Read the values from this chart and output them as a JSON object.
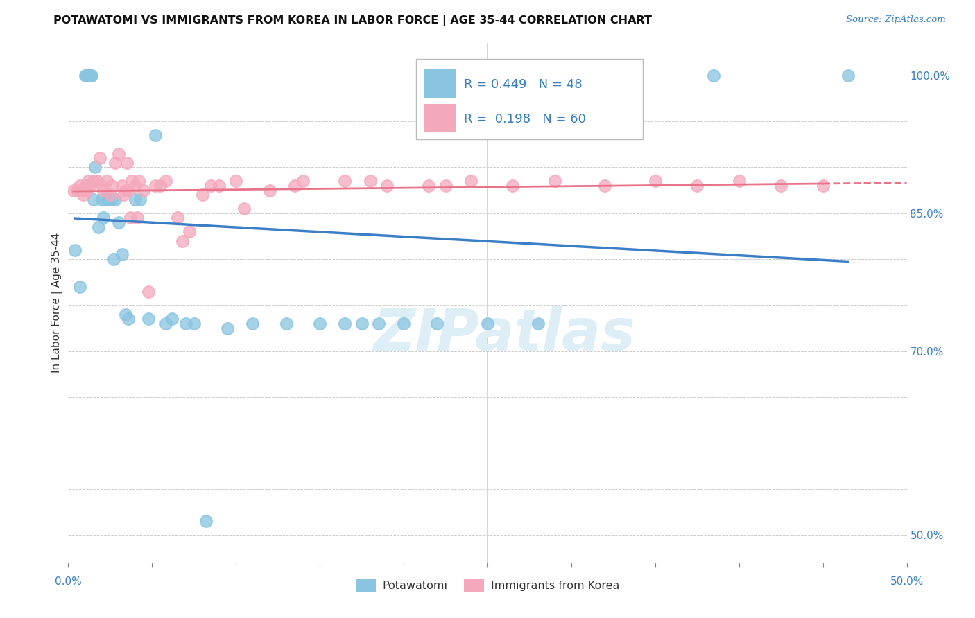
{
  "title": "POTAWATOMI VS IMMIGRANTS FROM KOREA IN LABOR FORCE | AGE 35-44 CORRELATION CHART",
  "source": "Source: ZipAtlas.com",
  "ylabel": "In Labor Force | Age 35-44",
  "xlim": [
    0.0,
    50.0
  ],
  "ylim": [
    47.0,
    103.5
  ],
  "R_blue": 0.449,
  "N_blue": 48,
  "R_pink": 0.198,
  "N_pink": 60,
  "blue_scatter_color": "#89c4e1",
  "pink_scatter_color": "#f4a8bc",
  "trendline_blue_color": "#3a7ec6",
  "trendline_pink_color": "#e8748a",
  "watermark_color": "#ddeef7",
  "right_tick_color": "#3a7ec6",
  "ytick_vals": [
    50,
    55,
    60,
    65,
    70,
    75,
    80,
    85,
    90,
    95,
    100
  ],
  "ytick_labels_right": [
    "50.0%",
    "",
    "",
    "",
    "70.0%",
    "",
    "",
    "85.0%",
    "",
    "",
    "100.0%"
  ],
  "potawatomi_x": [
    0.4,
    0.7,
    1.0,
    1.05,
    1.1,
    1.15,
    1.2,
    1.25,
    1.3,
    1.35,
    1.4,
    1.5,
    1.6,
    1.8,
    2.0,
    2.1,
    2.2,
    2.4,
    2.6,
    2.7,
    2.8,
    3.0,
    3.2,
    3.4,
    3.6,
    4.0,
    4.3,
    4.8,
    5.2,
    5.8,
    6.2,
    7.0,
    7.5,
    8.2,
    9.5,
    11.0,
    13.0,
    15.0,
    16.5,
    17.5,
    18.5,
    20.0,
    22.0,
    25.0,
    28.0,
    32.0,
    38.5,
    46.5
  ],
  "potawatomi_y": [
    81.0,
    77.0,
    100.0,
    100.0,
    100.0,
    100.0,
    100.0,
    100.0,
    100.0,
    100.0,
    100.0,
    86.5,
    90.0,
    83.5,
    86.5,
    84.5,
    86.5,
    86.5,
    86.5,
    80.0,
    86.5,
    84.0,
    80.5,
    74.0,
    73.5,
    86.5,
    86.5,
    73.5,
    93.5,
    73.0,
    73.5,
    73.0,
    73.0,
    51.5,
    72.5,
    73.0,
    73.0,
    73.0,
    73.0,
    73.0,
    73.0,
    73.0,
    73.0,
    73.0,
    73.0,
    100.0,
    100.0,
    100.0
  ],
  "korea_x": [
    0.3,
    0.5,
    0.7,
    0.8,
    0.9,
    1.0,
    1.05,
    1.1,
    1.2,
    1.3,
    1.5,
    1.7,
    1.9,
    2.0,
    2.1,
    2.3,
    2.5,
    2.6,
    2.8,
    3.0,
    3.2,
    3.4,
    3.5,
    3.6,
    3.8,
    4.0,
    4.2,
    4.5,
    4.8,
    5.2,
    5.8,
    6.5,
    7.2,
    8.0,
    9.0,
    10.5,
    12.0,
    14.0,
    16.5,
    19.0,
    21.5,
    24.0,
    26.5,
    29.0,
    32.0,
    35.0,
    37.5,
    40.0,
    42.5,
    45.0,
    3.3,
    3.7,
    4.1,
    5.5,
    6.8,
    8.5,
    10.0,
    13.5,
    18.0,
    22.5
  ],
  "korea_y": [
    87.5,
    87.5,
    88.0,
    87.5,
    87.0,
    87.5,
    88.0,
    87.5,
    88.5,
    88.0,
    88.5,
    88.5,
    91.0,
    88.0,
    87.5,
    88.5,
    87.0,
    88.0,
    90.5,
    91.5,
    88.0,
    87.5,
    90.5,
    87.5,
    88.5,
    88.0,
    88.5,
    87.5,
    76.5,
    88.0,
    88.5,
    84.5,
    83.0,
    87.0,
    88.0,
    85.5,
    87.5,
    88.5,
    88.5,
    88.0,
    88.0,
    88.5,
    88.0,
    88.5,
    88.0,
    88.5,
    88.0,
    88.5,
    88.0,
    88.0,
    87.0,
    84.5,
    84.5,
    88.0,
    82.0,
    88.0,
    88.5,
    88.0,
    88.5,
    88.0
  ]
}
